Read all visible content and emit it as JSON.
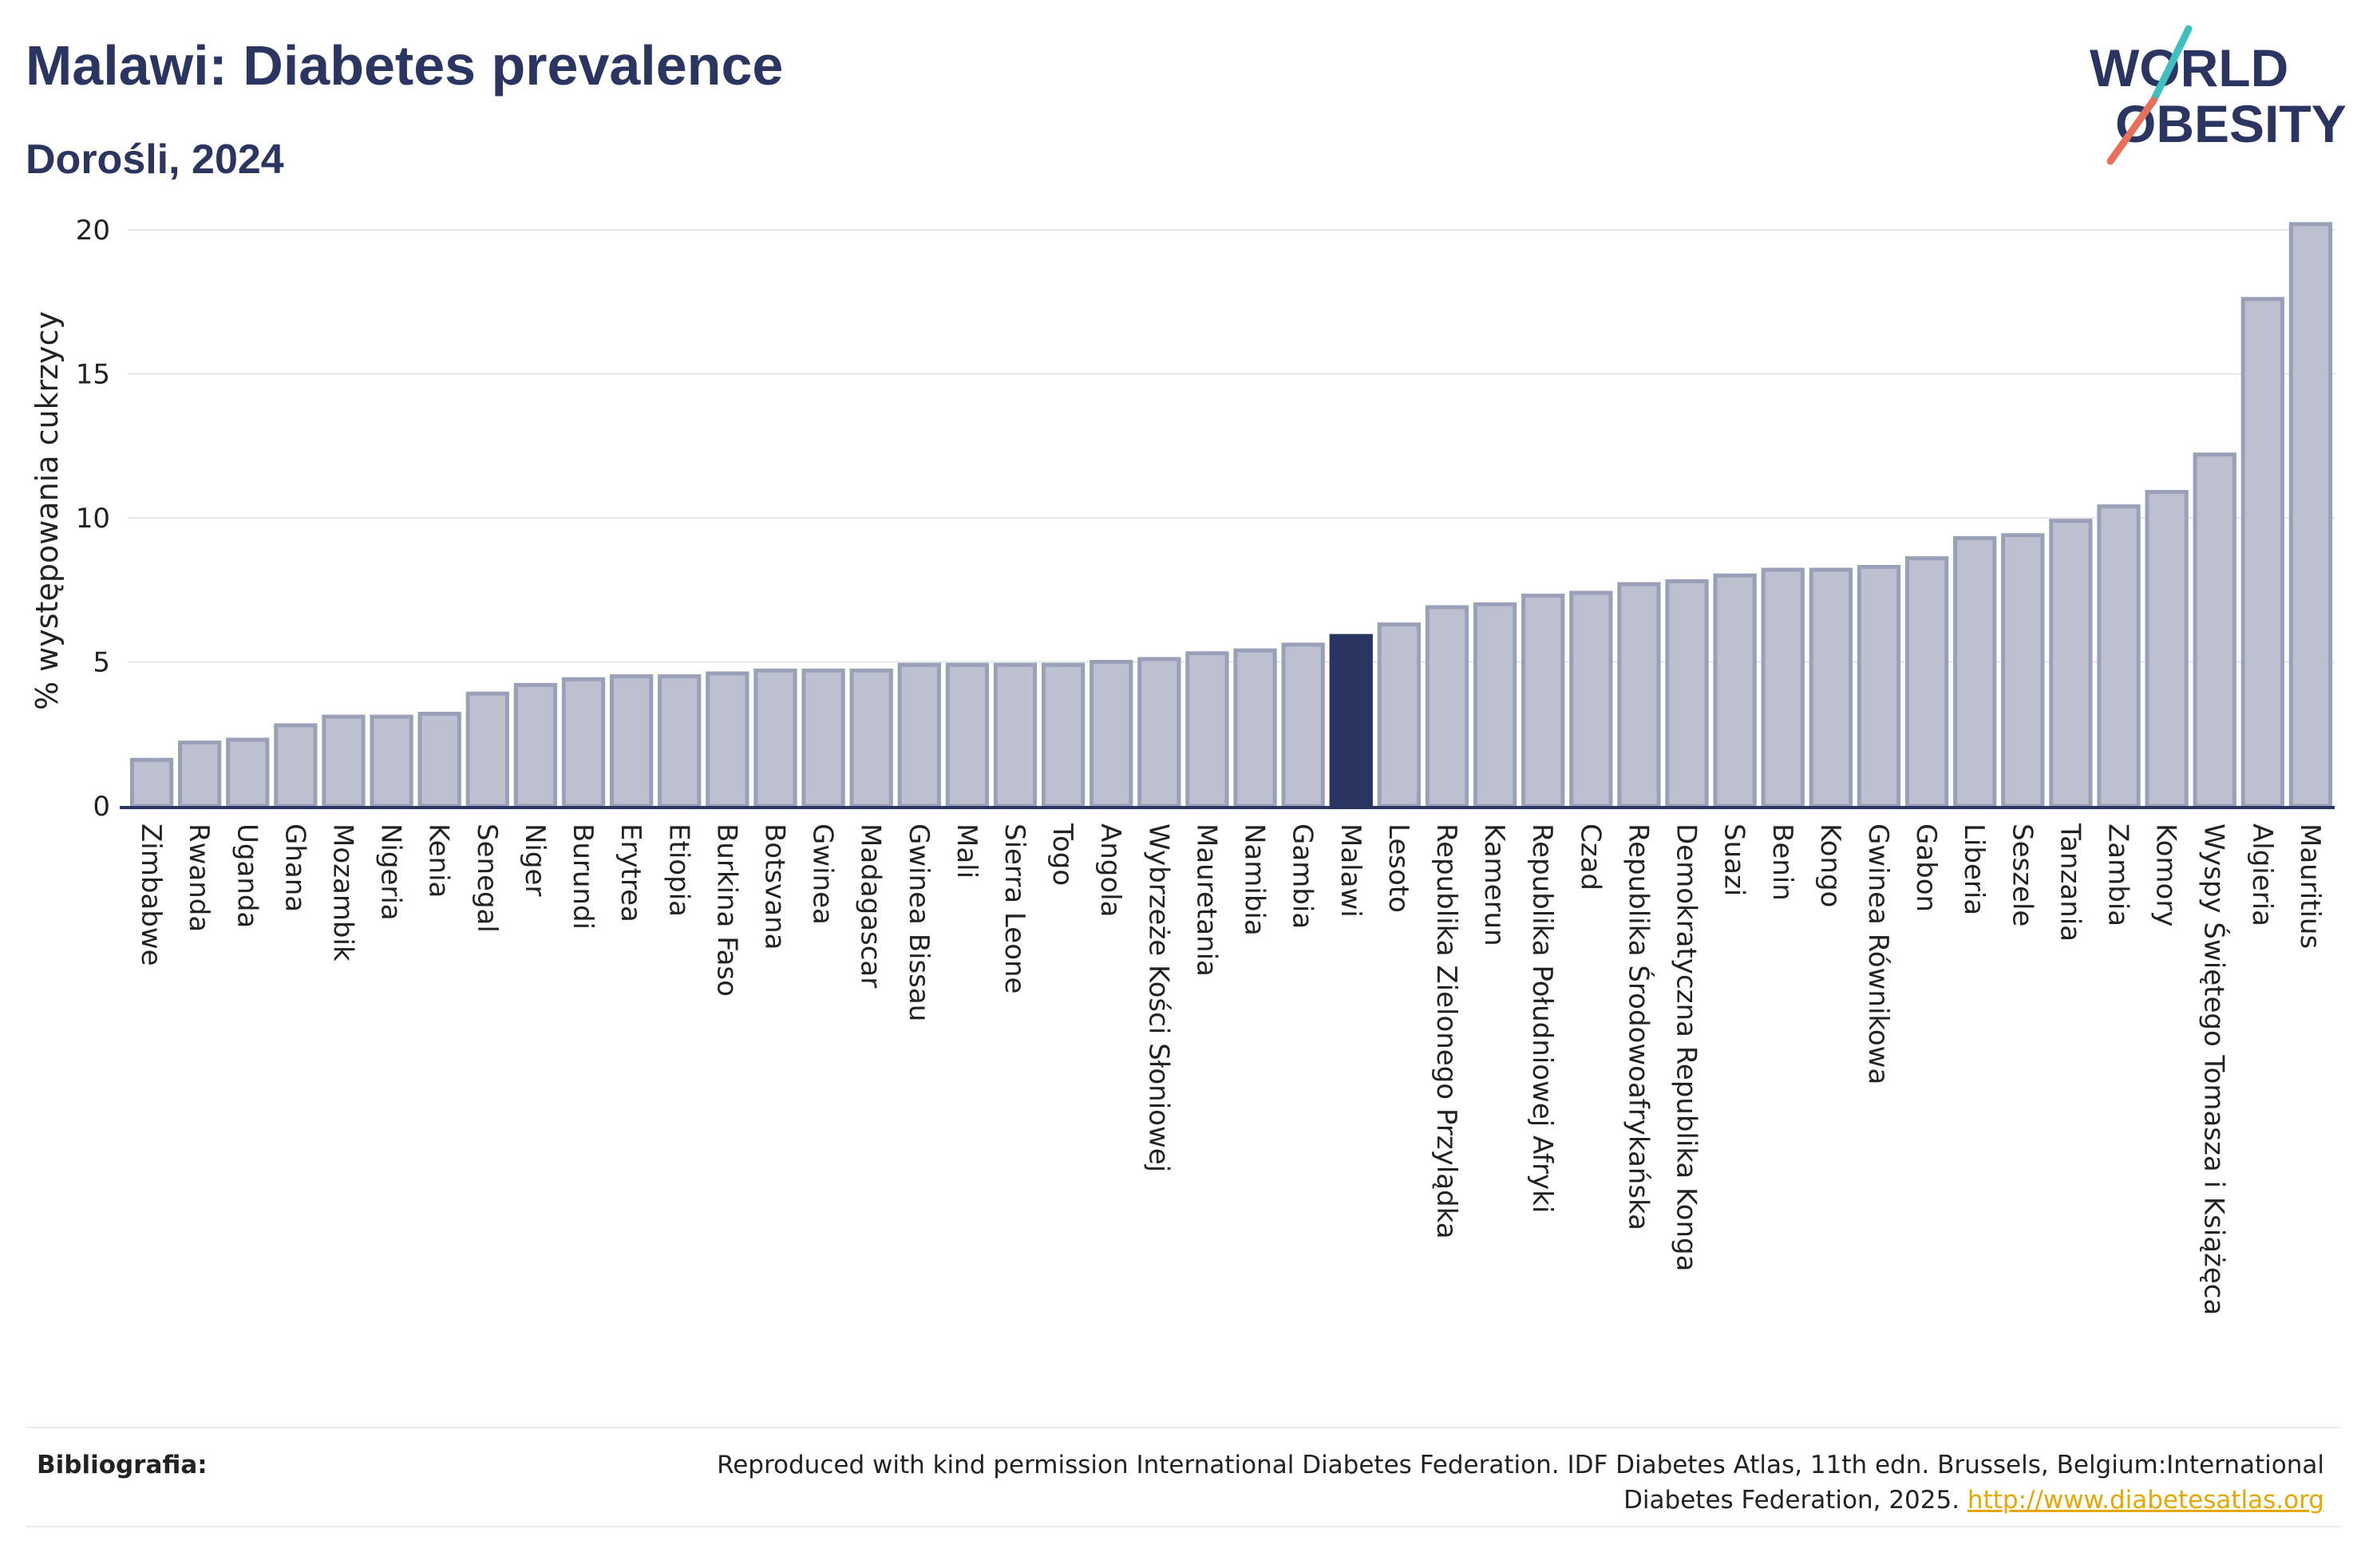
{
  "header": {
    "title": "Malawi: Diabetes prevalence",
    "subtitle": "Dorośli, 2024"
  },
  "logo": {
    "line1": "WORLD",
    "line2": "OBESITY",
    "accent_teal": "#3fbfbf",
    "accent_coral": "#e8705a"
  },
  "colors": {
    "bar": "#bcc0cf",
    "bar_stroke": "#9aa0b8",
    "highlight": "#2b3561",
    "grid": "#e6e6e6",
    "axis": "#2b3561"
  },
  "chart_data": {
    "type": "bar",
    "title": "Malawi: Diabetes prevalence",
    "subtitle": "Dorośli, 2024",
    "ylabel": "% występowania cukrzycy",
    "xlabel": "",
    "ylim": [
      0,
      20.5
    ],
    "yticks": [
      0,
      5,
      10,
      15,
      20
    ],
    "grid": true,
    "highlight": "Malawi",
    "categories": [
      "Zimbabwe",
      "Rwanda",
      "Uganda",
      "Ghana",
      "Mozambik",
      "Nigeria",
      "Kenia",
      "Senegal",
      "Niger",
      "Burundi",
      "Erytrea",
      "Etiopia",
      "Burkina Faso",
      "Botsvana",
      "Gwinea",
      "Madagascar",
      "Gwinea Bissau",
      "Mali",
      "Sierra Leone",
      "Togo",
      "Angola",
      "Wybrzeże Kości Słoniowej",
      "Mauretania",
      "Namibia",
      "Gambia",
      "Malawi",
      "Lesoto",
      "Republika Zielonego Przylądka",
      "Kamerun",
      "Republika Południowej Afryki",
      "Czad",
      "Republika Środowoafrykańska",
      "Demokratyczna Republika Konga",
      "Suazi",
      "Benin",
      "Kongo",
      "Gwinea Równikowa",
      "Gabon",
      "Liberia",
      "Seszele",
      "Tanzania",
      "Zambia",
      "Komory",
      "Wyspy Świętego Tomasza i Książęca",
      "Algieria",
      "Mauritius"
    ],
    "values": [
      1.6,
      2.2,
      2.3,
      2.8,
      3.1,
      3.1,
      3.2,
      3.9,
      4.2,
      4.4,
      4.5,
      4.5,
      4.6,
      4.7,
      4.7,
      4.7,
      4.9,
      4.9,
      4.9,
      4.9,
      5.0,
      5.1,
      5.3,
      5.4,
      5.6,
      5.9,
      6.3,
      6.9,
      7.0,
      7.3,
      7.4,
      7.7,
      7.8,
      8.0,
      8.2,
      8.2,
      8.3,
      8.6,
      9.3,
      9.4,
      9.9,
      10.4,
      10.9,
      12.2,
      17.6,
      20.2
    ]
  },
  "footer": {
    "label": "Bibliografia:",
    "text_line1": "Reproduced with kind permission International Diabetes Federation. IDF Diabetes Atlas, 11th edn. Brussels, Belgium:International",
    "text_line2": "Diabetes Federation, 2025.",
    "link": "http://www.diabetesatlas.org"
  }
}
